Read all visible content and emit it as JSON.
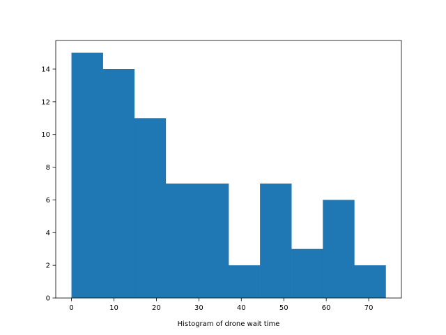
{
  "chart_data": {
    "type": "bar",
    "bar_color": "#1f77b4",
    "bins": [
      {
        "x0": 0.0,
        "x1": 7.4,
        "count": 15
      },
      {
        "x0": 7.4,
        "x1": 14.8,
        "count": 14
      },
      {
        "x0": 14.8,
        "x1": 22.2,
        "count": 11
      },
      {
        "x0": 22.2,
        "x1": 29.6,
        "count": 7
      },
      {
        "x0": 29.6,
        "x1": 37.0,
        "count": 7
      },
      {
        "x0": 37.0,
        "x1": 44.4,
        "count": 2
      },
      {
        "x0": 44.4,
        "x1": 51.8,
        "count": 7
      },
      {
        "x0": 51.8,
        "x1": 59.2,
        "count": 3
      },
      {
        "x0": 59.2,
        "x1": 66.6,
        "count": 6
      },
      {
        "x0": 66.6,
        "x1": 74.0,
        "count": 2
      }
    ],
    "xlim": [
      -3.7,
      77.7
    ],
    "ylim": [
      0,
      15.75
    ],
    "xticks": [
      0,
      10,
      20,
      30,
      40,
      50,
      60,
      70
    ],
    "yticks": [
      0,
      2,
      4,
      6,
      8,
      10,
      12,
      14
    ],
    "xlabel": "Histogram of drone wait time",
    "ylabel": "",
    "title": "",
    "grid": false,
    "legend": false
  }
}
